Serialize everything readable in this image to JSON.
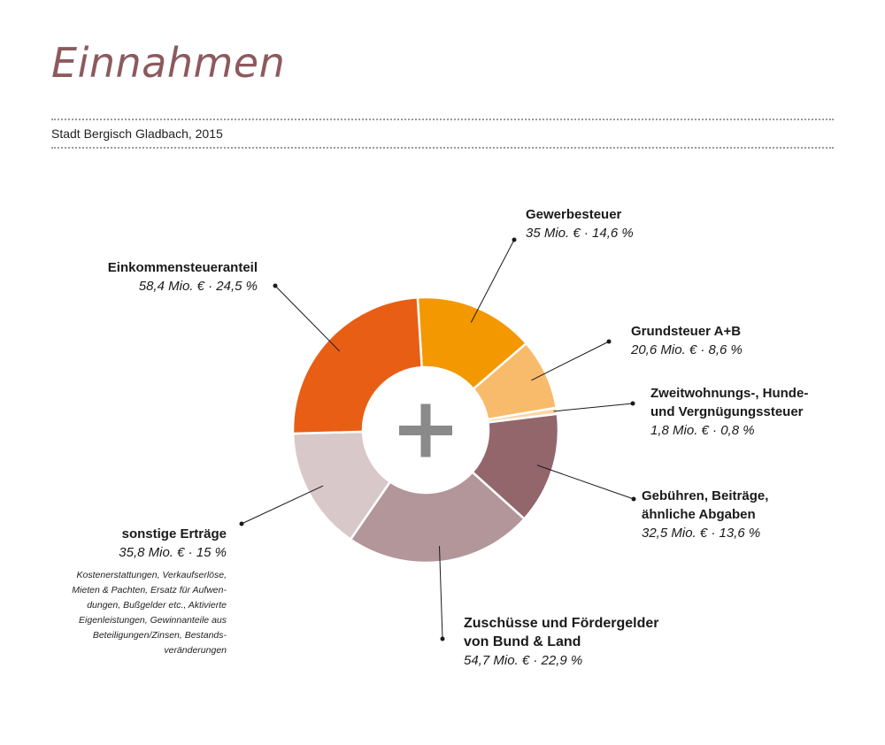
{
  "header": {
    "title": "Einnahmen",
    "subtitle": "Stadt Bergisch Gladbach, 2015"
  },
  "center_icon": "plus-icon",
  "chart_data": {
    "type": "pie",
    "donut": true,
    "slices": [
      {
        "name": "Gewerbesteuer",
        "value": 35,
        "percent": 14.6,
        "label": "35 Mio. € · 14,6 %",
        "color": "#f39800"
      },
      {
        "name": "Grundsteuer A+B",
        "value": 20.6,
        "percent": 8.6,
        "label": "20,6 Mio. € · 8,6 %",
        "color": "#f8bb6b"
      },
      {
        "name": "Zweitwohnungs-, Hunde- und Vergnügungssteuer",
        "value": 1.8,
        "percent": 0.8,
        "label": "1,8 Mio. € · 0,8 %",
        "color": "#fbd7a6"
      },
      {
        "name": "Gebühren, Beiträge, ähnliche Abgaben",
        "value": 32.5,
        "percent": 13.6,
        "label": "32,5 Mio. € · 13,6 %",
        "color": "#93666c"
      },
      {
        "name": "Zuschüsse und Fördergelder von Bund & Land",
        "value": 54.7,
        "percent": 22.9,
        "label": "54,7 Mio. € · 22,9 %",
        "color": "#b29699"
      },
      {
        "name": "sonstige Erträge",
        "value": 35.8,
        "percent": 15,
        "label": "35,8 Mio. € · 15 %",
        "color": "#d8c8c9"
      },
      {
        "name": "Einkommensteueranteil",
        "value": 58.4,
        "percent": 24.5,
        "label": "58,4 Mio. € · 24,5 %",
        "color": "#e85e14"
      }
    ]
  },
  "labels": {
    "gewerbesteuer": {
      "name": "Gewerbesteuer",
      "value": "35 Mio. € · 14,6 %"
    },
    "grundsteuer": {
      "name": "Grundsteuer A+B",
      "value": "20,6 Mio. € · 8,6 %"
    },
    "zweitwohnung": {
      "name_line1": "Zweitwohnungs-, Hunde-",
      "name_line2": "und Vergnügungssteuer",
      "value": "1,8 Mio. € · 0,8 %"
    },
    "gebuehren": {
      "name_line1": "Gebühren, Beiträge,",
      "name_line2": "ähnliche Abgaben",
      "value": "32,5 Mio. € · 13,6 %"
    },
    "zuschuesse": {
      "name_line1": "Zuschüsse und Fördergelder",
      "name_line2": "von Bund & Land",
      "value": "54,7 Mio. € · 22,9 %"
    },
    "sonstige": {
      "name": "sonstige Erträge",
      "value": "35,8 Mio. € · 15 %",
      "note": "Kostenerstattungen, Verkaufserlöse,\nMieten & Pachten, Ersatz für Aufwen-\ndungen, Bußgelder etc., Aktivierte\nEigenleistungen, Gewinnanteile aus\nBeteiligungen/Zinsen, Bestands-\nveränderungen"
    },
    "einkommen": {
      "name": "Einkommensteueranteil",
      "value": "58,4 Mio. € · 24,5 %"
    }
  }
}
